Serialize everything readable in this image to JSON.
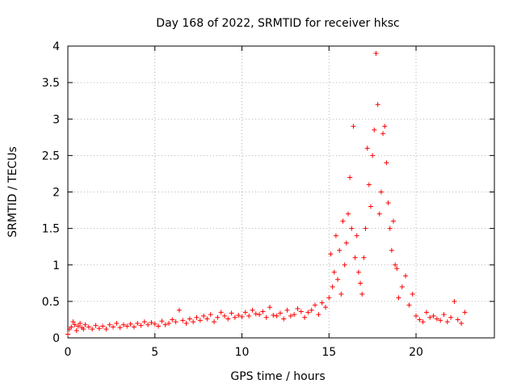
{
  "chart_data": {
    "type": "scatter",
    "title": "Day 168 of 2022, SRMTID for receiver hksc",
    "xlabel": "GPS time / hours",
    "ylabel": "SRMTID / TECUs",
    "xlim": [
      0,
      24.5
    ],
    "ylim": [
      0,
      4
    ],
    "xticks": [
      0,
      5,
      10,
      15,
      20
    ],
    "xtick_labels": [
      "0",
      "5",
      "10",
      "15",
      "20"
    ],
    "yticks": [
      0,
      0.5,
      1,
      1.5,
      2,
      2.5,
      3,
      3.5,
      4
    ],
    "ytick_labels": [
      "0",
      "0.5",
      "1",
      "1.5",
      "2",
      "2.5",
      "3",
      "3.5",
      "4"
    ],
    "grid": true,
    "marker": "+",
    "series": [
      {
        "name": "SRMTID",
        "color": "#ff0000",
        "x": [
          0.0,
          0.1,
          0.2,
          0.3,
          0.4,
          0.5,
          0.6,
          0.7,
          0.8,
          0.9,
          1.0,
          1.2,
          1.4,
          1.6,
          1.8,
          2.0,
          2.2,
          2.4,
          2.6,
          2.8,
          3.0,
          3.2,
          3.4,
          3.6,
          3.8,
          4.0,
          4.2,
          4.4,
          4.6,
          4.8,
          5.0,
          5.2,
          5.4,
          5.6,
          5.8,
          6.0,
          6.2,
          6.4,
          6.6,
          6.8,
          7.0,
          7.2,
          7.4,
          7.6,
          7.8,
          8.0,
          8.2,
          8.4,
          8.6,
          8.8,
          9.0,
          9.2,
          9.4,
          9.6,
          9.8,
          10.0,
          10.2,
          10.4,
          10.6,
          10.8,
          11.0,
          11.2,
          11.4,
          11.6,
          11.8,
          12.0,
          12.2,
          12.4,
          12.6,
          12.8,
          13.0,
          13.2,
          13.4,
          13.6,
          13.8,
          14.0,
          14.2,
          14.4,
          14.6,
          14.8,
          15.0,
          15.1,
          15.2,
          15.3,
          15.4,
          15.5,
          15.6,
          15.7,
          15.8,
          15.9,
          16.0,
          16.1,
          16.2,
          16.3,
          16.4,
          16.5,
          16.6,
          16.7,
          16.8,
          16.9,
          17.0,
          17.1,
          17.2,
          17.3,
          17.4,
          17.5,
          17.6,
          17.7,
          17.8,
          17.9,
          18.0,
          18.1,
          18.2,
          18.3,
          18.4,
          18.5,
          18.6,
          18.7,
          18.8,
          18.9,
          19.0,
          19.2,
          19.4,
          19.6,
          19.8,
          20.0,
          20.2,
          20.4,
          20.6,
          20.8,
          21.0,
          21.2,
          21.4,
          21.6,
          21.8,
          22.0,
          22.2,
          22.4,
          22.6,
          22.8
        ],
        "y": [
          0.05,
          0.12,
          0.15,
          0.22,
          0.18,
          0.1,
          0.16,
          0.2,
          0.14,
          0.12,
          0.18,
          0.15,
          0.12,
          0.17,
          0.13,
          0.16,
          0.12,
          0.18,
          0.15,
          0.2,
          0.14,
          0.18,
          0.16,
          0.19,
          0.15,
          0.2,
          0.17,
          0.22,
          0.18,
          0.21,
          0.19,
          0.16,
          0.23,
          0.18,
          0.2,
          0.25,
          0.22,
          0.38,
          0.24,
          0.2,
          0.26,
          0.22,
          0.28,
          0.24,
          0.3,
          0.26,
          0.32,
          0.22,
          0.28,
          0.35,
          0.3,
          0.26,
          0.34,
          0.28,
          0.31,
          0.29,
          0.35,
          0.3,
          0.38,
          0.33,
          0.32,
          0.36,
          0.28,
          0.42,
          0.31,
          0.3,
          0.34,
          0.26,
          0.38,
          0.3,
          0.32,
          0.4,
          0.36,
          0.28,
          0.35,
          0.38,
          0.45,
          0.32,
          0.48,
          0.42,
          0.55,
          1.15,
          0.7,
          0.9,
          1.4,
          0.8,
          1.2,
          0.6,
          1.6,
          1.0,
          1.3,
          1.7,
          2.2,
          1.5,
          2.9,
          1.1,
          1.4,
          0.9,
          0.75,
          0.6,
          1.1,
          1.5,
          2.6,
          2.1,
          1.8,
          2.5,
          2.85,
          3.9,
          3.2,
          1.7,
          2.0,
          2.8,
          2.9,
          2.4,
          1.85,
          1.5,
          1.2,
          1.6,
          1.0,
          0.95,
          0.55,
          0.7,
          0.85,
          0.45,
          0.6,
          0.3,
          0.25,
          0.22,
          0.35,
          0.28,
          0.3,
          0.26,
          0.24,
          0.32,
          0.22,
          0.28,
          0.5,
          0.25,
          0.2,
          0.35
        ]
      }
    ]
  }
}
